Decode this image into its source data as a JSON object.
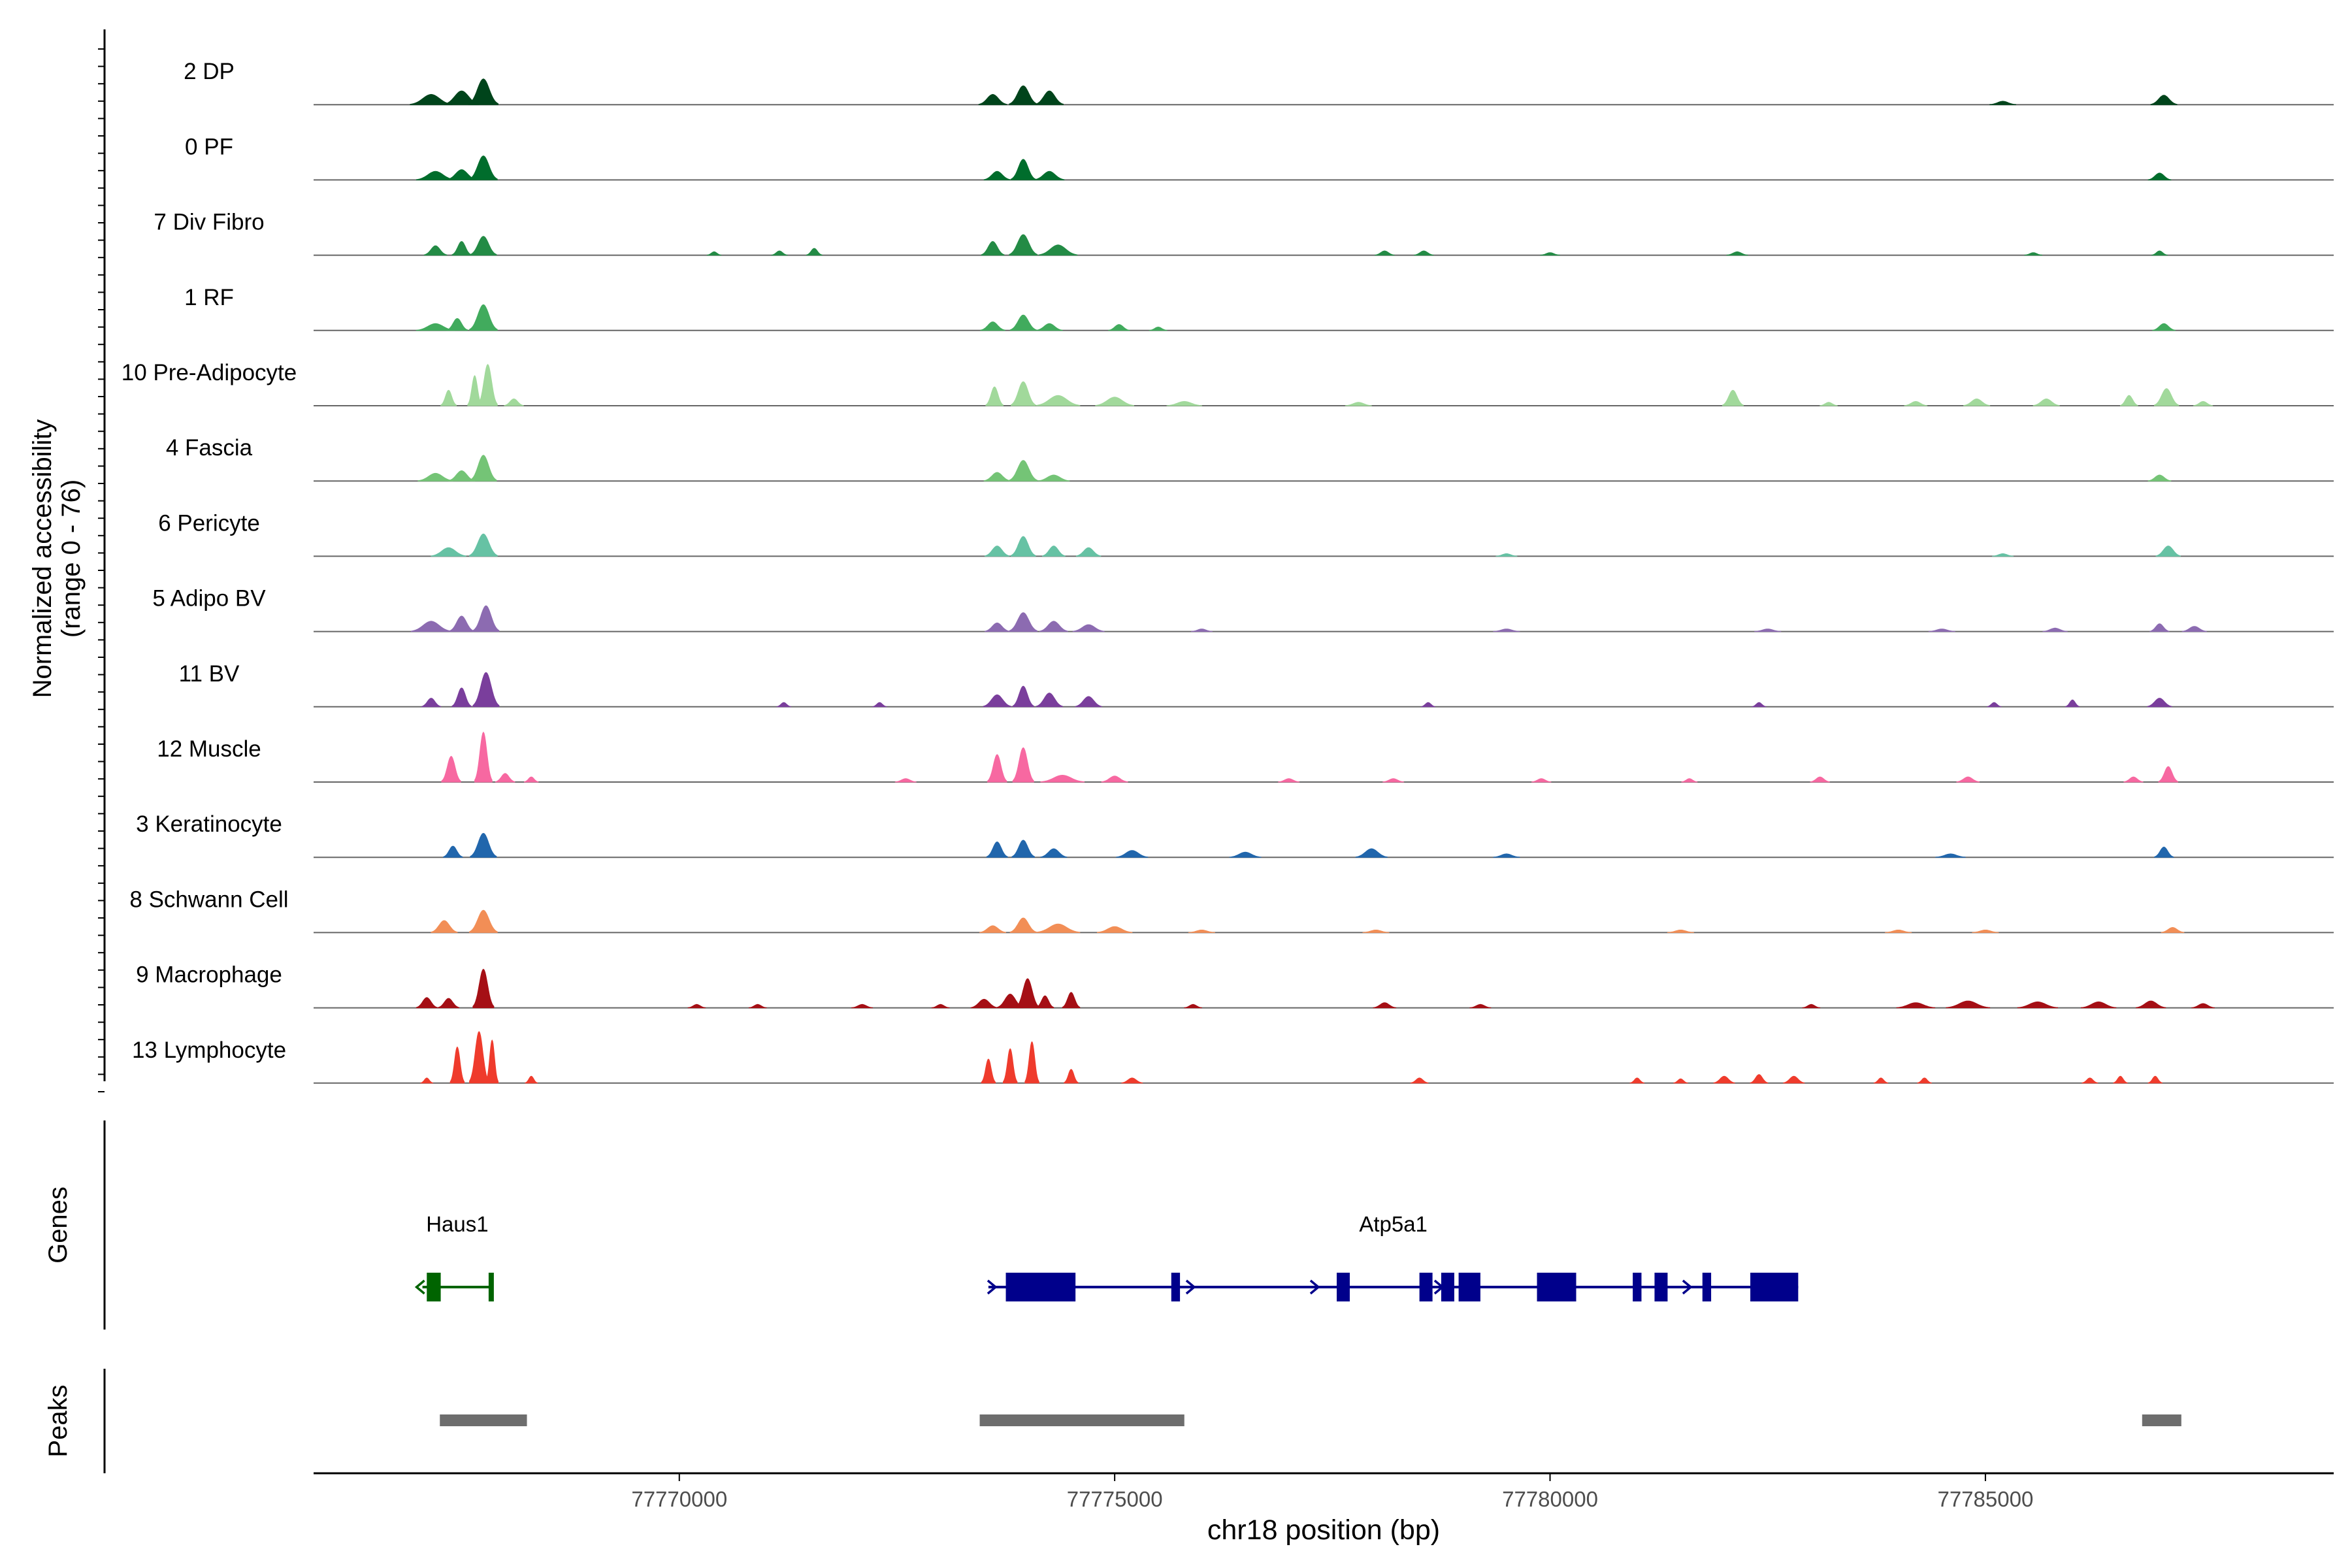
{
  "chart_data": {
    "type": "area",
    "ylabel_line1": "Normalized accessibility",
    "ylabel_line2": "(range 0 - 76)",
    "y_range": [
      0,
      76
    ],
    "xlabel": "chr18 position (bp)",
    "xlim": [
      77765800,
      77789000
    ],
    "x_ticks": [
      {
        "value": 77770000,
        "label": "77770000"
      },
      {
        "value": 77775000,
        "label": "77775000"
      },
      {
        "value": 77780000,
        "label": "77780000"
      },
      {
        "value": 77785000,
        "label": "77785000"
      }
    ],
    "tracks": [
      {
        "name": "2 DP",
        "color": "#00441b",
        "peaks": [
          [
            77767150,
            240,
            12
          ],
          [
            77767500,
            200,
            16
          ],
          [
            77767750,
            170,
            30
          ],
          [
            77773600,
            160,
            12
          ],
          [
            77773950,
            160,
            22
          ],
          [
            77774250,
            160,
            16
          ],
          [
            77785200,
            150,
            4
          ],
          [
            77787050,
            150,
            11
          ]
        ]
      },
      {
        "name": "0 PF",
        "color": "#006d2c",
        "peaks": [
          [
            77767200,
            220,
            10
          ],
          [
            77767500,
            170,
            12
          ],
          [
            77767750,
            160,
            28
          ],
          [
            77773650,
            150,
            10
          ],
          [
            77773950,
            140,
            24
          ],
          [
            77774250,
            170,
            10
          ],
          [
            77787000,
            130,
            8
          ]
        ]
      },
      {
        "name": "7 Div Fibro",
        "color": "#238b45",
        "peaks": [
          [
            77767200,
            130,
            11
          ],
          [
            77767500,
            110,
            16
          ],
          [
            77767750,
            150,
            22
          ],
          [
            77773600,
            130,
            16
          ],
          [
            77773950,
            160,
            24
          ],
          [
            77774350,
            220,
            12
          ],
          [
            77770400,
            80,
            4
          ],
          [
            77771150,
            90,
            5
          ],
          [
            77771550,
            90,
            8
          ],
          [
            77778100,
            110,
            5
          ],
          [
            77778550,
            110,
            5
          ],
          [
            77780000,
            110,
            3
          ],
          [
            77782150,
            120,
            4
          ],
          [
            77785550,
            100,
            3
          ],
          [
            77787000,
            90,
            5
          ]
        ]
      },
      {
        "name": "1 RF",
        "color": "#41ab5d",
        "peaks": [
          [
            77767200,
            220,
            8
          ],
          [
            77767450,
            120,
            14
          ],
          [
            77767750,
            160,
            30
          ],
          [
            77773600,
            140,
            10
          ],
          [
            77773950,
            150,
            18
          ],
          [
            77774250,
            150,
            8
          ],
          [
            77775050,
            120,
            7
          ],
          [
            77775500,
            100,
            4
          ],
          [
            77787050,
            130,
            8
          ]
        ]
      },
      {
        "name": "10 Pre-Adipocyte",
        "color": "#a1d99b",
        "peaks": [
          [
            77767350,
            90,
            18
          ],
          [
            77767650,
            80,
            35
          ],
          [
            77767800,
            110,
            48
          ],
          [
            77768100,
            110,
            8
          ],
          [
            77773620,
            100,
            22
          ],
          [
            77773950,
            140,
            28
          ],
          [
            77774350,
            250,
            12
          ],
          [
            77775000,
            220,
            10
          ],
          [
            77775800,
            200,
            5
          ],
          [
            77777800,
            150,
            4
          ],
          [
            77782100,
            120,
            18
          ],
          [
            77783200,
            100,
            4
          ],
          [
            77784200,
            130,
            5
          ],
          [
            77784900,
            150,
            8
          ],
          [
            77785700,
            150,
            8
          ],
          [
            77786650,
            100,
            12
          ],
          [
            77787080,
            140,
            20
          ],
          [
            77787500,
            110,
            5
          ]
        ]
      },
      {
        "name": "4 Fascia",
        "color": "#74c476",
        "peaks": [
          [
            77767200,
            200,
            9
          ],
          [
            77767500,
            150,
            12
          ],
          [
            77767750,
            150,
            30
          ],
          [
            77773650,
            150,
            10
          ],
          [
            77773950,
            160,
            24
          ],
          [
            77774300,
            180,
            7
          ],
          [
            77787000,
            130,
            7
          ]
        ]
      },
      {
        "name": "6 Pericyte",
        "color": "#66c2a4",
        "peaks": [
          [
            77767350,
            200,
            10
          ],
          [
            77767750,
            160,
            26
          ],
          [
            77773650,
            140,
            12
          ],
          [
            77773950,
            140,
            23
          ],
          [
            77774300,
            130,
            12
          ],
          [
            77774700,
            140,
            10
          ],
          [
            77779500,
            120,
            3
          ],
          [
            77785200,
            120,
            3
          ],
          [
            77787100,
            140,
            12
          ]
        ]
      },
      {
        "name": "5 Adipo BV",
        "color": "#8c6bb1",
        "peaks": [
          [
            77767150,
            230,
            12
          ],
          [
            77767500,
            140,
            18
          ],
          [
            77767780,
            150,
            30
          ],
          [
            77773650,
            140,
            10
          ],
          [
            77773950,
            160,
            22
          ],
          [
            77774300,
            160,
            12
          ],
          [
            77774700,
            180,
            8
          ],
          [
            77776000,
            120,
            3
          ],
          [
            77779500,
            150,
            3
          ],
          [
            77782500,
            150,
            3
          ],
          [
            77784500,
            150,
            3
          ],
          [
            77785800,
            140,
            4
          ],
          [
            77787000,
            110,
            9
          ],
          [
            77787400,
            140,
            6
          ]
        ]
      },
      {
        "name": "11 BV",
        "color": "#7a3e9c",
        "peaks": [
          [
            77767150,
            110,
            10
          ],
          [
            77767500,
            110,
            22
          ],
          [
            77767780,
            150,
            40
          ],
          [
            77773650,
            160,
            14
          ],
          [
            77773950,
            120,
            24
          ],
          [
            77774250,
            150,
            16
          ],
          [
            77774700,
            150,
            12
          ],
          [
            77771200,
            80,
            5
          ],
          [
            77772300,
            80,
            5
          ],
          [
            77778600,
            80,
            5
          ],
          [
            77782400,
            80,
            5
          ],
          [
            77785100,
            80,
            5
          ],
          [
            77786000,
            80,
            8
          ],
          [
            77787000,
            140,
            10
          ]
        ]
      },
      {
        "name": "12 Muscle",
        "color": "#f768a1",
        "peaks": [
          [
            77767380,
            110,
            30
          ],
          [
            77767750,
            100,
            58
          ],
          [
            77768000,
            110,
            10
          ],
          [
            77768300,
            80,
            6
          ],
          [
            77773650,
            110,
            32
          ],
          [
            77773950,
            120,
            40
          ],
          [
            77774400,
            250,
            8
          ],
          [
            77775000,
            150,
            7
          ],
          [
            77772600,
            120,
            4
          ],
          [
            77777000,
            120,
            4
          ],
          [
            77778200,
            120,
            4
          ],
          [
            77779900,
            110,
            4
          ],
          [
            77781600,
            90,
            4
          ],
          [
            77783100,
            110,
            6
          ],
          [
            77784800,
            130,
            6
          ],
          [
            77786700,
            110,
            6
          ],
          [
            77787100,
            110,
            18
          ]
        ]
      },
      {
        "name": "3 Keratinocyte",
        "color": "#2166ac",
        "peaks": [
          [
            77767400,
            110,
            13
          ],
          [
            77767750,
            150,
            28
          ],
          [
            77773650,
            120,
            18
          ],
          [
            77773950,
            130,
            20
          ],
          [
            77774300,
            150,
            10
          ],
          [
            77775200,
            180,
            8
          ],
          [
            77776500,
            180,
            6
          ],
          [
            77777950,
            180,
            10
          ],
          [
            77779500,
            150,
            4
          ],
          [
            77784600,
            170,
            4
          ],
          [
            77787050,
            110,
            12
          ]
        ]
      },
      {
        "name": "8 Schwann Cell",
        "color": "#f28e56",
        "peaks": [
          [
            77767300,
            150,
            14
          ],
          [
            77767750,
            160,
            26
          ],
          [
            77773600,
            150,
            8
          ],
          [
            77773950,
            150,
            17
          ],
          [
            77774350,
            250,
            10
          ],
          [
            77775000,
            200,
            7
          ],
          [
            77776000,
            150,
            3
          ],
          [
            77778000,
            150,
            3
          ],
          [
            77781500,
            150,
            3
          ],
          [
            77784000,
            150,
            3
          ],
          [
            77785000,
            150,
            3
          ],
          [
            77787150,
            130,
            6
          ]
        ]
      },
      {
        "name": "9 Macrophage",
        "color": "#a50f15",
        "peaks": [
          [
            77767100,
            120,
            12
          ],
          [
            77767350,
            120,
            11
          ],
          [
            77767750,
            120,
            45
          ],
          [
            77773500,
            150,
            10
          ],
          [
            77773800,
            150,
            16
          ],
          [
            77774000,
            130,
            34
          ],
          [
            77774200,
            100,
            14
          ],
          [
            77774500,
            100,
            18
          ],
          [
            77770200,
            100,
            4
          ],
          [
            77770900,
            100,
            4
          ],
          [
            77772100,
            120,
            4
          ],
          [
            77773000,
            100,
            4
          ],
          [
            77775900,
            100,
            4
          ],
          [
            77778100,
            130,
            6
          ],
          [
            77779200,
            120,
            4
          ],
          [
            77783000,
            100,
            4
          ],
          [
            77784200,
            220,
            6
          ],
          [
            77784800,
            250,
            8
          ],
          [
            77785600,
            230,
            7
          ],
          [
            77786300,
            200,
            7
          ],
          [
            77786900,
            170,
            8
          ],
          [
            77787500,
            130,
            5
          ]
        ]
      },
      {
        "name": "13 Lymphocyte",
        "color": "#ef3b2c",
        "peaks": [
          [
            77767100,
            70,
            6
          ],
          [
            77767450,
            80,
            42
          ],
          [
            77767700,
            110,
            60
          ],
          [
            77767850,
            70,
            50
          ],
          [
            77768300,
            70,
            8
          ],
          [
            77773550,
            80,
            28
          ],
          [
            77773800,
            80,
            40
          ],
          [
            77774050,
            80,
            48
          ],
          [
            77774500,
            80,
            16
          ],
          [
            77775200,
            120,
            6
          ],
          [
            77778500,
            100,
            6
          ],
          [
            77781000,
            80,
            6
          ],
          [
            77781500,
            80,
            5
          ],
          [
            77782000,
            120,
            8
          ],
          [
            77782400,
            100,
            10
          ],
          [
            77782800,
            120,
            8
          ],
          [
            77783800,
            80,
            6
          ],
          [
            77784300,
            80,
            6
          ],
          [
            77786200,
            90,
            6
          ],
          [
            77786550,
            80,
            8
          ],
          [
            77786950,
            80,
            8
          ]
        ]
      }
    ]
  },
  "genes_panel": {
    "label": "Genes",
    "genes": [
      {
        "name": "Haus1",
        "color": "#006400",
        "strand": "-",
        "start": 77767050,
        "end": 77767850,
        "exons": [
          [
            77767100,
            77767260
          ],
          [
            77767810,
            77767850
          ]
        ]
      },
      {
        "name": "Atp5a1",
        "color": "#00008b",
        "strand": "+",
        "start": 77773550,
        "end": 77782850,
        "exons": [
          [
            77773750,
            77774550
          ],
          [
            77775650,
            77775750
          ],
          [
            77777550,
            77777700
          ],
          [
            77778500,
            77778650
          ],
          [
            77778750,
            77778900
          ],
          [
            77778950,
            77779200
          ],
          [
            77779850,
            77780300
          ],
          [
            77780950,
            77781050
          ],
          [
            77781200,
            77781350
          ],
          [
            77781750,
            77781850
          ],
          [
            77782300,
            77782850
          ]
        ]
      }
    ]
  },
  "peaks_panel": {
    "label": "Peaks",
    "color": "#6d6d6d",
    "regions": [
      [
        77767250,
        77768250
      ],
      [
        77773450,
        77775800
      ],
      [
        77786800,
        77787250
      ]
    ]
  }
}
